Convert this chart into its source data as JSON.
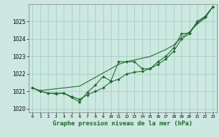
{
  "background_color": "#cce8e0",
  "grid_color": "#99ccbb",
  "line_color": "#1a6b2a",
  "title": "Graphe pression niveau de la mer (hPa)",
  "xlim": [
    -0.5,
    23.5
  ],
  "ylim": [
    1019.8,
    1026.0
  ],
  "yticks": [
    1020,
    1021,
    1022,
    1023,
    1024,
    1025
  ],
  "xticks": [
    0,
    1,
    2,
    3,
    4,
    5,
    6,
    7,
    8,
    9,
    10,
    11,
    12,
    13,
    14,
    15,
    16,
    17,
    18,
    19,
    20,
    21,
    22,
    23
  ],
  "hours": [
    0,
    1,
    2,
    3,
    4,
    5,
    6,
    7,
    8,
    9,
    10,
    11,
    12,
    13,
    14,
    15,
    16,
    17,
    18,
    19,
    20,
    21,
    22,
    23
  ],
  "line_zigzag": [
    1021.2,
    1021.0,
    1020.9,
    1020.9,
    1020.9,
    1020.65,
    1020.4,
    1020.95,
    1021.35,
    1021.85,
    1021.6,
    1022.7,
    1022.7,
    1022.7,
    1022.3,
    1022.3,
    1022.7,
    1023.0,
    1023.5,
    1024.3,
    1024.35,
    1025.0,
    1025.3,
    1025.85
  ],
  "line_smooth": [
    1021.2,
    1021.0,
    1020.9,
    1020.85,
    1020.9,
    1020.7,
    1020.55,
    1020.8,
    1021.0,
    1021.2,
    1021.55,
    1021.7,
    1022.0,
    1022.1,
    1022.15,
    1022.3,
    1022.55,
    1022.85,
    1023.3,
    1024.0,
    1024.3,
    1024.95,
    1025.25,
    1025.85
  ],
  "line_straight": [
    1021.2,
    1021.05,
    1021.1,
    1021.15,
    1021.2,
    1021.25,
    1021.3,
    1021.55,
    1021.8,
    1022.05,
    1022.3,
    1022.55,
    1022.7,
    1022.8,
    1022.9,
    1023.0,
    1023.2,
    1023.4,
    1023.65,
    1024.1,
    1024.4,
    1024.85,
    1025.2,
    1025.85
  ]
}
